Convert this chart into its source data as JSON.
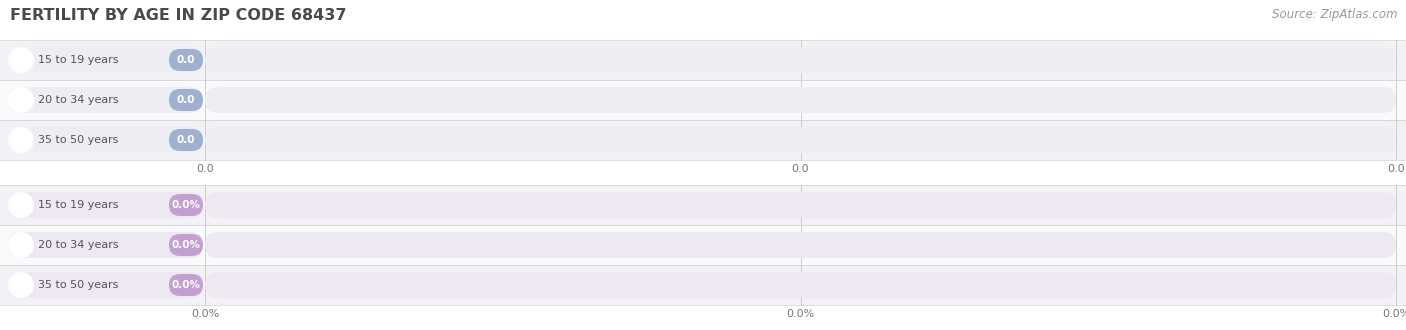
{
  "title": "FERTILITY BY AGE IN ZIP CODE 68437",
  "title_color": "#4a4a4a",
  "title_fontsize": 11.5,
  "source_text": "Source: ZipAtlas.com",
  "source_color": "#999999",
  "source_fontsize": 8.5,
  "background_color": "#ffffff",
  "categories": [
    "15 to 19 years",
    "20 to 34 years",
    "35 to 50 years"
  ],
  "section1": {
    "bar_bg_color": "#eceef4",
    "bar_fg_color": "#a0b0d0",
    "label_bg_color": "#eceef4",
    "label_color": "#555555",
    "value_color": "#ffffff",
    "tick_labels": [
      "0.0",
      "0.0",
      "0.0"
    ]
  },
  "section2": {
    "bar_bg_color": "#eee8f2",
    "bar_fg_color": "#c4a0d0",
    "label_bg_color": "#eee8f2",
    "label_color": "#555555",
    "value_color": "#ffffff",
    "tick_labels": [
      "0.0%",
      "0.0%",
      "0.0%"
    ]
  },
  "row_bg_colors": [
    "#f2f2f6",
    "#fafafa"
  ],
  "figsize": [
    14.06,
    3.3
  ],
  "dpi": 100
}
